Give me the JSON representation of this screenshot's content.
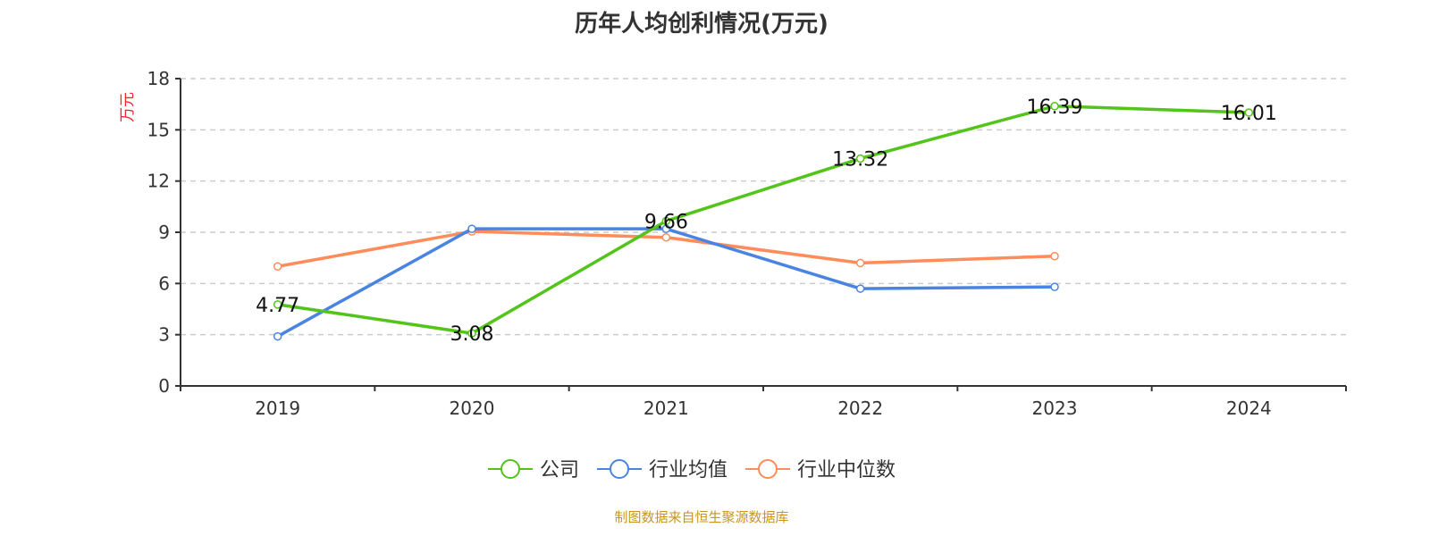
{
  "chart_data": {
    "type": "line",
    "title": "历年人均创利情况(万元)",
    "ylabel": "万元",
    "xlabel": "",
    "categories": [
      "2019",
      "2020",
      "2021",
      "2022",
      "2023",
      "2024"
    ],
    "ylim": [
      0,
      18
    ],
    "yticks": [
      0,
      3,
      6,
      9,
      12,
      15,
      18
    ],
    "grid": true,
    "legend_position": "bottom",
    "series": [
      {
        "name": "公司",
        "color": "#52c41a",
        "values": [
          4.77,
          3.08,
          9.66,
          13.32,
          16.39,
          16.01
        ],
        "labels": [
          "4.77",
          "3.08",
          "9.66",
          "13.32",
          "16.39",
          "16.01"
        ]
      },
      {
        "name": "行业均值",
        "color": "#4a84e2",
        "values": [
          2.9,
          9.2,
          9.2,
          5.7,
          5.8,
          null
        ]
      },
      {
        "name": "行业中位数",
        "color": "#ff8c5a",
        "values": [
          7.0,
          9.05,
          8.7,
          7.2,
          7.6,
          null
        ]
      }
    ]
  },
  "source": "制图数据来自恒生聚源数据库"
}
